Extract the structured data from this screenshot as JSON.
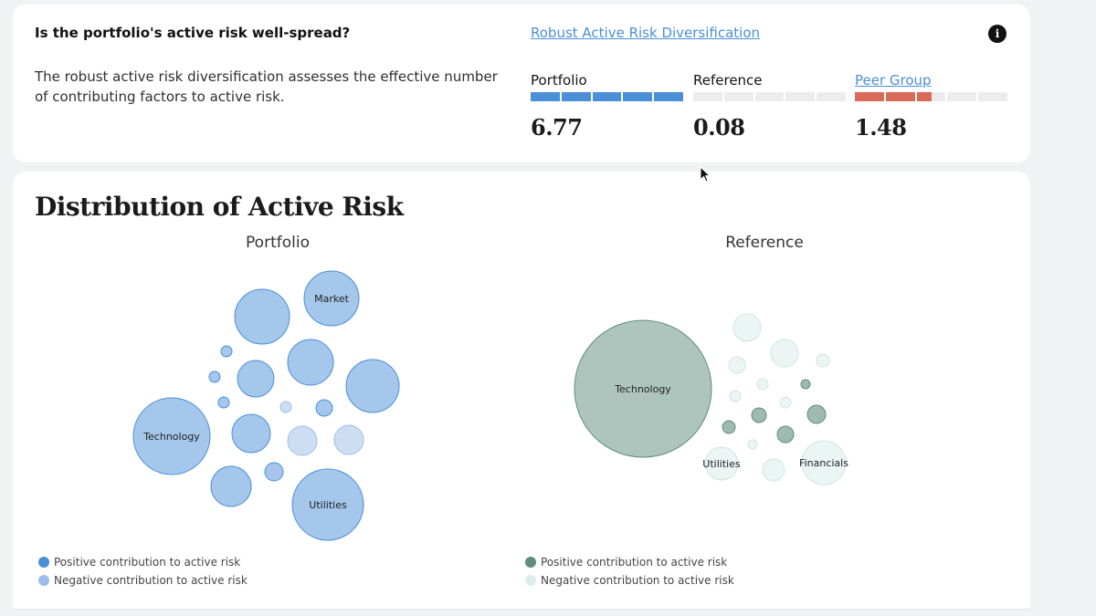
{
  "question": {
    "title": "Is the portfolio's active risk well-spread?",
    "description": "The robust active risk diversification assesses the effective number of contributing factors to active risk.",
    "link": "Robust Active Risk Diversification",
    "info_icon": "info-icon"
  },
  "metrics": [
    {
      "label": "Portfolio",
      "value": "6.77",
      "fill_fraction": 1.0,
      "color": "#4a8fd8",
      "is_link": false
    },
    {
      "label": "Reference",
      "value": "0.08",
      "fill_fraction": 0.0,
      "color": "#4a8fd8",
      "is_link": false
    },
    {
      "label": "Peer Group",
      "value": "1.48",
      "fill_fraction": 0.5,
      "color": "#d96a57",
      "is_link": true
    }
  ],
  "distribution": {
    "title": "Distribution of Active Risk",
    "panels": [
      {
        "title": "Portfolio",
        "positive_color": "#4a8fd8",
        "negative_color": "#9bbde8",
        "legend": [
          "Positive contribution to active risk",
          "Negative contribution to active risk"
        ],
        "bubbles": [
          {
            "label": "Technology"
          },
          {
            "label": "Market"
          },
          {
            "label": "Utilities"
          }
        ]
      },
      {
        "title": "Reference",
        "positive_color": "#5e8c7d",
        "negative_color": "#dceeec",
        "legend": [
          "Positive contribution to active risk",
          "Negative contribution to active risk"
        ],
        "bubbles": [
          {
            "label": "Technology"
          },
          {
            "label": "Utilities"
          },
          {
            "label": "Financials"
          }
        ]
      }
    ]
  }
}
